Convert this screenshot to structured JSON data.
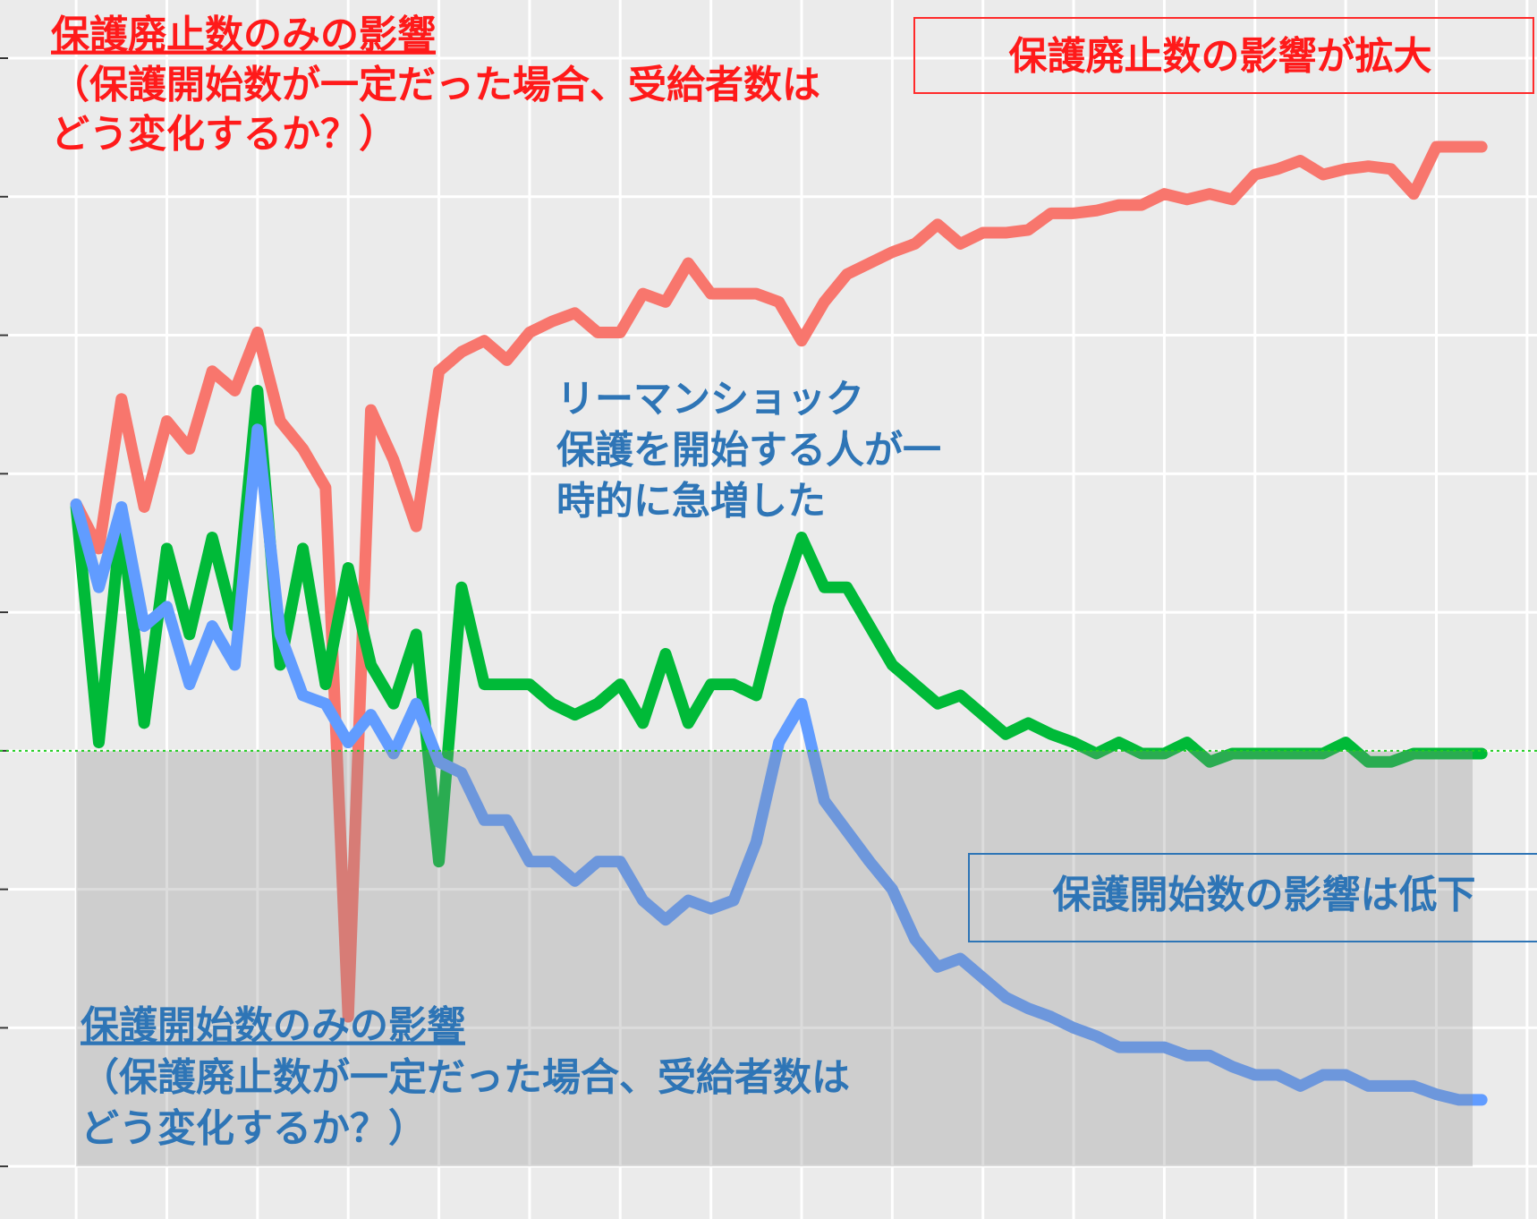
{
  "chart_data": {
    "type": "line",
    "annotations": {
      "red_heading": "保護廃止数のみの影響",
      "red_lines": [
        "（保護開始数が一定だった場合、受給者数は",
        "どう変化するか？）"
      ],
      "red_box": "保護廃止数の影響が拡大",
      "lehman": [
        "リーマンショック",
        "保護を開始する人が一",
        "時的に急増した"
      ],
      "blue_box": "保護開始数の影響は低下",
      "blue_heading": "保護開始数のみの影響",
      "blue_lines": [
        "（保護廃止数が一定だった場合、受給者数は",
        "どう変化するか？）"
      ]
    },
    "x": [
      0,
      0.25,
      0.5,
      0.75,
      1,
      1.25,
      1.5,
      1.75,
      2,
      2.25,
      2.5,
      2.75,
      3,
      3.25,
      3.5,
      3.75,
      4,
      4.25,
      4.5,
      4.75,
      5,
      5.25,
      5.5,
      5.75,
      6,
      6.25,
      6.5,
      6.75,
      7,
      7.25,
      7.5,
      7.75,
      8,
      8.25,
      8.5,
      8.75,
      9,
      9.25,
      9.5,
      9.75,
      10,
      10.25,
      10.5,
      10.75,
      11,
      11.25,
      11.5,
      11.75,
      12,
      12.25,
      12.5,
      12.75,
      13,
      13.25,
      13.5,
      13.75,
      14,
      14.25,
      14.5,
      14.75,
      15,
      15.25,
      15.5
    ],
    "series": [
      {
        "color": "#f8766d",
        "values": [
          0.89,
          0.73,
          1.27,
          0.88,
          1.19,
          1.09,
          1.37,
          1.3,
          1.51,
          1.19,
          1.09,
          0.95,
          -0.96,
          1.23,
          1.05,
          0.81,
          1.37,
          1.44,
          1.48,
          1.41,
          1.51,
          1.55,
          1.58,
          1.51,
          1.51,
          1.65,
          1.62,
          1.76,
          1.65,
          1.65,
          1.65,
          1.62,
          1.48,
          1.62,
          1.72,
          1.76,
          1.8,
          1.83,
          1.9,
          1.83,
          1.87,
          1.87,
          1.88,
          1.94,
          1.94,
          1.95,
          1.97,
          1.97,
          2.01,
          1.99,
          2.01,
          1.99,
          2.08,
          2.1,
          2.13,
          2.08,
          2.1,
          2.11,
          2.1,
          2.01,
          2.18,
          2.18,
          2.18
        ]
      },
      {
        "color": "#00ba38",
        "values": [
          0.88,
          0.03,
          0.84,
          0.1,
          0.73,
          0.42,
          0.77,
          0.45,
          1.3,
          0.31,
          0.73,
          0.24,
          0.66,
          0.31,
          0.17,
          0.42,
          -0.4,
          0.59,
          0.24,
          0.24,
          0.24,
          0.17,
          0.13,
          0.17,
          0.24,
          0.1,
          0.35,
          0.1,
          0.24,
          0.24,
          0.2,
          0.52,
          0.77,
          0.59,
          0.59,
          0.45,
          0.31,
          0.24,
          0.17,
          0.2,
          0.13,
          0.06,
          0.1,
          0.06,
          0.03,
          -0.01,
          0.03,
          -0.01,
          -0.01,
          0.03,
          -0.04,
          -0.01,
          -0.01,
          -0.01,
          -0.01,
          -0.01,
          0.03,
          -0.04,
          -0.04,
          -0.01,
          -0.01,
          -0.01,
          -0.01
        ]
      },
      {
        "color": "#619cff",
        "values": [
          0.89,
          0.59,
          0.88,
          0.45,
          0.52,
          0.24,
          0.45,
          0.31,
          1.16,
          0.42,
          0.2,
          0.17,
          0.03,
          0.13,
          -0.01,
          0.17,
          -0.04,
          -0.08,
          -0.25,
          -0.25,
          -0.4,
          -0.4,
          -0.47,
          -0.4,
          -0.4,
          -0.54,
          -0.61,
          -0.54,
          -0.57,
          -0.54,
          -0.33,
          0.03,
          0.17,
          -0.18,
          -0.29,
          -0.4,
          -0.5,
          -0.68,
          -0.78,
          -0.75,
          -0.82,
          -0.89,
          -0.93,
          -0.96,
          -1.0,
          -1.03,
          -1.07,
          -1.07,
          -1.07,
          -1.1,
          -1.1,
          -1.14,
          -1.17,
          -1.17,
          -1.21,
          -1.17,
          -1.17,
          -1.21,
          -1.21,
          -1.21,
          -1.24,
          -1.26,
          -1.26
        ]
      }
    ],
    "reference_line": 0,
    "reference_color": "#22cc22",
    "shaded_region": {
      "x": [
        0,
        15.4
      ],
      "y": [
        -1.5,
        0
      ]
    },
    "xlim": [
      -0.84,
      16.11
    ],
    "ylim": [
      -1.69,
      2.71
    ],
    "xticks": [
      0,
      1,
      2,
      3,
      4,
      5,
      6,
      7,
      8,
      9,
      10,
      11,
      12,
      13,
      14,
      15,
      16
    ],
    "yticks": [
      -1.5,
      -1,
      -0.5,
      0,
      0.5,
      1,
      1.5,
      2,
      2.5
    ],
    "grid": true,
    "background": "#ebebeb"
  }
}
